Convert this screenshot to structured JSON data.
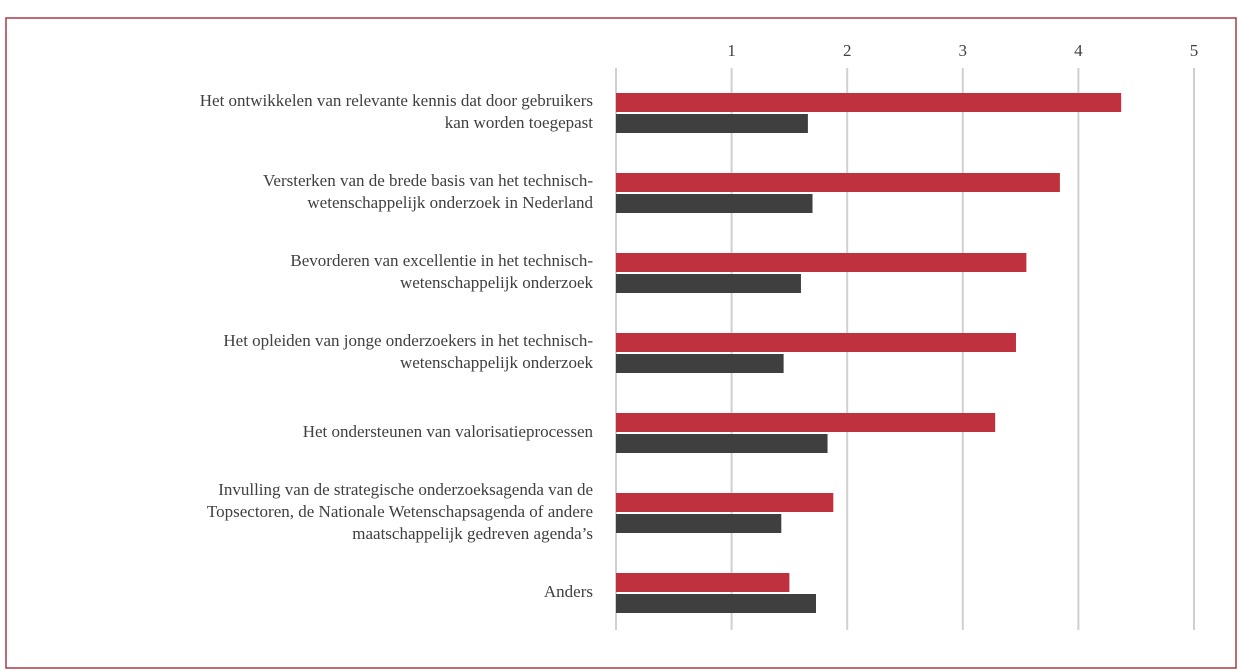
{
  "chart_data": {
    "type": "barh",
    "categories": [
      [
        "Het ontwikkelen van relevante kennis dat door gebruikers",
        "kan worden toegepast"
      ],
      [
        "Versterken van de brede basis van het technisch-",
        "wetenschappelijk onderzoek in Nederland"
      ],
      [
        "Bevorderen van excellentie in het technisch-",
        "wetenschappelijk onderzoek"
      ],
      [
        "Het opleiden van jonge onderzoekers in het technisch-",
        "wetenschappelijk onderzoek"
      ],
      [
        "Het ondersteunen van valorisatieprocessen"
      ],
      [
        "Invulling van de strategische onderzoeksagenda van de",
        "Topsectoren, de Nationale Wetenschapsagenda of andere",
        "maatschappelijk gedreven agenda’s"
      ],
      [
        "Anders"
      ]
    ],
    "series": [
      {
        "color": "#c0313f",
        "values": [
          4.37,
          3.84,
          3.55,
          3.46,
          3.28,
          1.88,
          1.5
        ]
      },
      {
        "color": "#3f3f3f",
        "values": [
          1.66,
          1.7,
          1.6,
          1.45,
          1.83,
          1.43,
          1.73
        ]
      }
    ],
    "xlim": [
      0,
      5
    ],
    "xticks": [
      1,
      2,
      3,
      4,
      5
    ],
    "grid": true
  }
}
